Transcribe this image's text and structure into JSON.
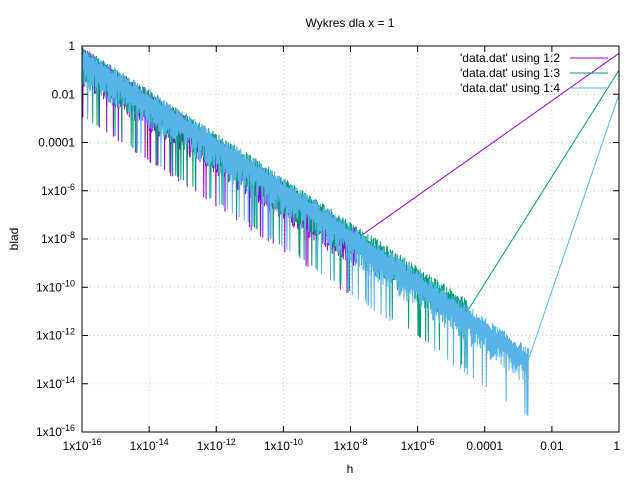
{
  "chart_data": {
    "type": "line",
    "title": "Wykres dla x = 1",
    "xlabel": "h",
    "ylabel": "blad",
    "xscale": "log",
    "yscale": "log",
    "xlim": [
      1e-16,
      1
    ],
    "ylim": [
      1e-16,
      1
    ],
    "x_ticks": [
      {
        "value": 1e-16,
        "label": "1x10",
        "exp": "-16"
      },
      {
        "value": 1e-14,
        "label": "1x10",
        "exp": "-14"
      },
      {
        "value": 1e-12,
        "label": "1x10",
        "exp": "-12"
      },
      {
        "value": 1e-10,
        "label": "1x10",
        "exp": "-10"
      },
      {
        "value": 1e-08,
        "label": "1x10",
        "exp": "-8"
      },
      {
        "value": 1e-06,
        "label": "1x10",
        "exp": "-6"
      },
      {
        "value": 0.0001,
        "label": "0.0001",
        "exp": ""
      },
      {
        "value": 0.01,
        "label": "0.01",
        "exp": ""
      },
      {
        "value": 1,
        "label": "1",
        "exp": ""
      }
    ],
    "y_ticks": [
      {
        "value": 1e-16,
        "label": "1x10",
        "exp": "-16"
      },
      {
        "value": 1e-14,
        "label": "1x10",
        "exp": "-14"
      },
      {
        "value": 1e-12,
        "label": "1x10",
        "exp": "-12"
      },
      {
        "value": 1e-10,
        "label": "1x10",
        "exp": "-10"
      },
      {
        "value": 1e-08,
        "label": "1x10",
        "exp": "-8"
      },
      {
        "value": 1e-06,
        "label": "1x10",
        "exp": "-6"
      },
      {
        "value": 0.0001,
        "label": "0.0001",
        "exp": ""
      },
      {
        "value": 0.01,
        "label": "0.01",
        "exp": ""
      },
      {
        "value": 1,
        "label": "1",
        "exp": ""
      }
    ],
    "grid": true,
    "legend_position": "top-right",
    "series": [
      {
        "name": "'data.dat' using 1:2",
        "color": "#9400d3",
        "noise_envelope": [
          [
            1e-16,
            0.3
          ],
          [
            1e-08,
            1e-08
          ],
          [
            1.5e-08,
            1e-08
          ]
        ],
        "trend": [
          [
            1.5e-08,
            1e-08
          ],
          [
            1,
            0.5
          ]
        ]
      },
      {
        "name": "'data.dat' using 1:3",
        "color": "#009e73",
        "noise_envelope": [
          [
            1e-16,
            0.3
          ],
          [
            1e-11,
            1e-05
          ],
          [
            3e-05,
            1e-11
          ]
        ],
        "trend": [
          [
            3e-05,
            1e-11
          ],
          [
            1,
            0.1
          ]
        ]
      },
      {
        "name": "'data.dat' using 1:4",
        "color": "#56b4e9",
        "noise_envelope": [
          [
            1e-16,
            0.3
          ],
          [
            1e-11,
            1e-05
          ],
          [
            0.002,
            1e-13
          ]
        ],
        "trend": [
          [
            0.002,
            1e-13
          ],
          [
            1,
            0.01
          ]
        ]
      }
    ]
  }
}
